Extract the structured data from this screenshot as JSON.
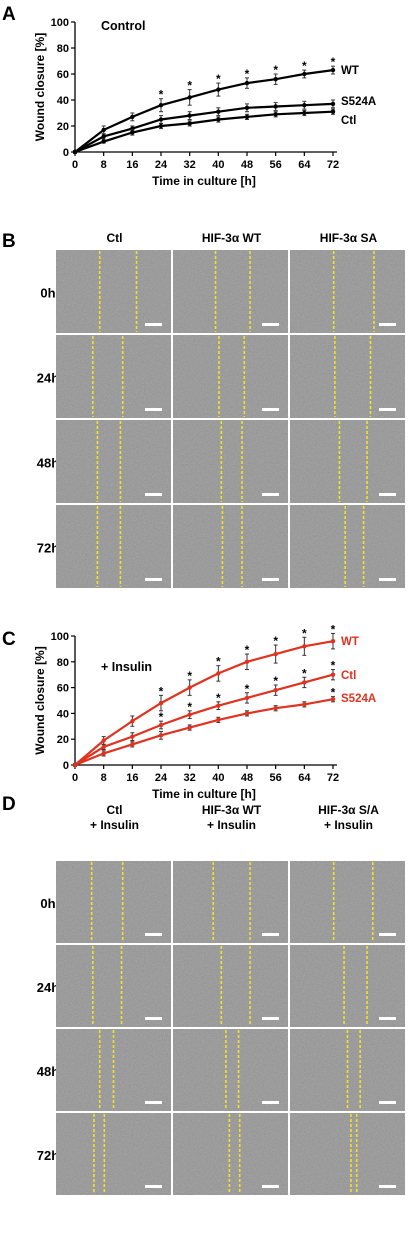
{
  "panels": {
    "A": "A",
    "B": "B",
    "C": "C",
    "D": "D"
  },
  "chart_data": [
    {
      "type": "line",
      "annotation": "Control",
      "xlabel": "Time in culture [h]",
      "ylabel": "Wound closure [%]",
      "x": [
        0,
        8,
        16,
        24,
        32,
        40,
        48,
        56,
        64,
        72
      ],
      "xticks": [
        "0",
        "8",
        "16",
        "24",
        "32",
        "40",
        "48",
        "56",
        "64",
        "72"
      ],
      "yticks": [
        "0",
        "20",
        "40",
        "60",
        "80",
        "100"
      ],
      "ylim": [
        0,
        100
      ],
      "color": "#000000",
      "series": [
        {
          "name": "WT",
          "values": [
            0,
            17,
            27,
            36,
            42,
            48,
            53,
            56,
            60,
            63
          ],
          "errors": [
            1,
            3,
            3,
            5,
            6,
            5,
            4,
            4,
            3,
            3
          ]
        },
        {
          "name": "S524A",
          "values": [
            0,
            12,
            18,
            25,
            28,
            31,
            34,
            35,
            36,
            37
          ],
          "errors": [
            1,
            2,
            2,
            3,
            3,
            3,
            3,
            3,
            3,
            3
          ]
        },
        {
          "name": "Ctl",
          "values": [
            0,
            8,
            15,
            20,
            22,
            25,
            27,
            29,
            30,
            31
          ],
          "errors": [
            1,
            1,
            2,
            2,
            2,
            2,
            2,
            2,
            2,
            2
          ]
        }
      ],
      "significance": [
        {
          "series": "WT",
          "x": [
            24,
            32,
            40,
            48,
            56,
            64,
            72
          ],
          "mark": "*"
        }
      ]
    },
    {
      "type": "line",
      "annotation": "+ Insulin",
      "xlabel": "Time in culture [h]",
      "ylabel": "Wound closure [%]",
      "x": [
        0,
        8,
        16,
        24,
        32,
        40,
        48,
        56,
        64,
        72
      ],
      "xticks": [
        "0",
        "8",
        "16",
        "24",
        "32",
        "40",
        "48",
        "56",
        "64",
        "72"
      ],
      "yticks": [
        "0",
        "20",
        "40",
        "60",
        "80",
        "100"
      ],
      "ylim": [
        0,
        100
      ],
      "color": "#e0321e",
      "series": [
        {
          "name": "WT",
          "values": [
            0,
            19,
            34,
            48,
            60,
            71,
            80,
            86,
            92,
            96
          ],
          "errors": [
            1,
            3,
            4,
            6,
            6,
            6,
            6,
            7,
            7,
            6
          ]
        },
        {
          "name": "Ctl",
          "values": [
            0,
            14,
            22,
            31,
            39,
            46,
            52,
            58,
            64,
            70
          ],
          "errors": [
            1,
            2,
            3,
            3,
            3,
            3,
            4,
            4,
            4,
            4
          ]
        },
        {
          "name": "S524A",
          "values": [
            0,
            9,
            16,
            23,
            29,
            35,
            40,
            44,
            47,
            51
          ],
          "errors": [
            1,
            2,
            2,
            3,
            2,
            2,
            2,
            2,
            2,
            2
          ]
        }
      ],
      "significance": [
        {
          "series": "WT",
          "x": [
            24,
            32,
            40,
            48,
            56,
            64,
            72
          ],
          "mark": "*"
        },
        {
          "series": "Ctl",
          "x": [
            24,
            32,
            40,
            48,
            56,
            64,
            72
          ],
          "mark": "*"
        },
        {
          "series": "S524A",
          "x": [
            72
          ],
          "mark": "*"
        }
      ]
    }
  ],
  "micrographs_B": {
    "columns": [
      "Ctl",
      "HIF-3α WT",
      "HIF-3α SA"
    ],
    "rows": [
      "0h",
      "24h",
      "48h",
      "72h"
    ],
    "gap_lines": [
      [
        [
          0.38,
          0.7
        ],
        [
          0.37,
          0.67
        ],
        [
          0.38,
          0.73
        ]
      ],
      [
        [
          0.32,
          0.58
        ],
        [
          0.4,
          0.62
        ],
        [
          0.39,
          0.7
        ]
      ],
      [
        [
          0.36,
          0.56
        ],
        [
          0.42,
          0.6
        ],
        [
          0.43,
          0.67
        ]
      ],
      [
        [
          0.36,
          0.56
        ],
        [
          0.43,
          0.6
        ],
        [
          0.48,
          0.64
        ]
      ]
    ],
    "line_color": "#f2e02a"
  },
  "micrographs_D": {
    "columns_top": [
      "Ctl",
      "HIF-3α WT",
      "HIF-3α S/A"
    ],
    "columns_bottom": [
      "+ Insulin",
      "+ Insulin",
      "+ Insulin"
    ],
    "rows": [
      "0h",
      "24h",
      "48h",
      "72h"
    ],
    "gap_lines": [
      [
        [
          0.31,
          0.58
        ],
        [
          0.35,
          0.67
        ],
        [
          0.38,
          0.72
        ]
      ],
      [
        [
          0.32,
          0.57
        ],
        [
          0.42,
          0.67
        ],
        [
          0.47,
          0.67
        ]
      ],
      [
        [
          0.38,
          0.5
        ],
        [
          0.46,
          0.57
        ],
        [
          0.5,
          0.61
        ]
      ],
      [
        [
          0.33,
          0.42
        ],
        [
          0.49,
          0.58
        ],
        [
          0.53,
          0.58
        ]
      ]
    ],
    "line_color": "#f2e02a"
  }
}
